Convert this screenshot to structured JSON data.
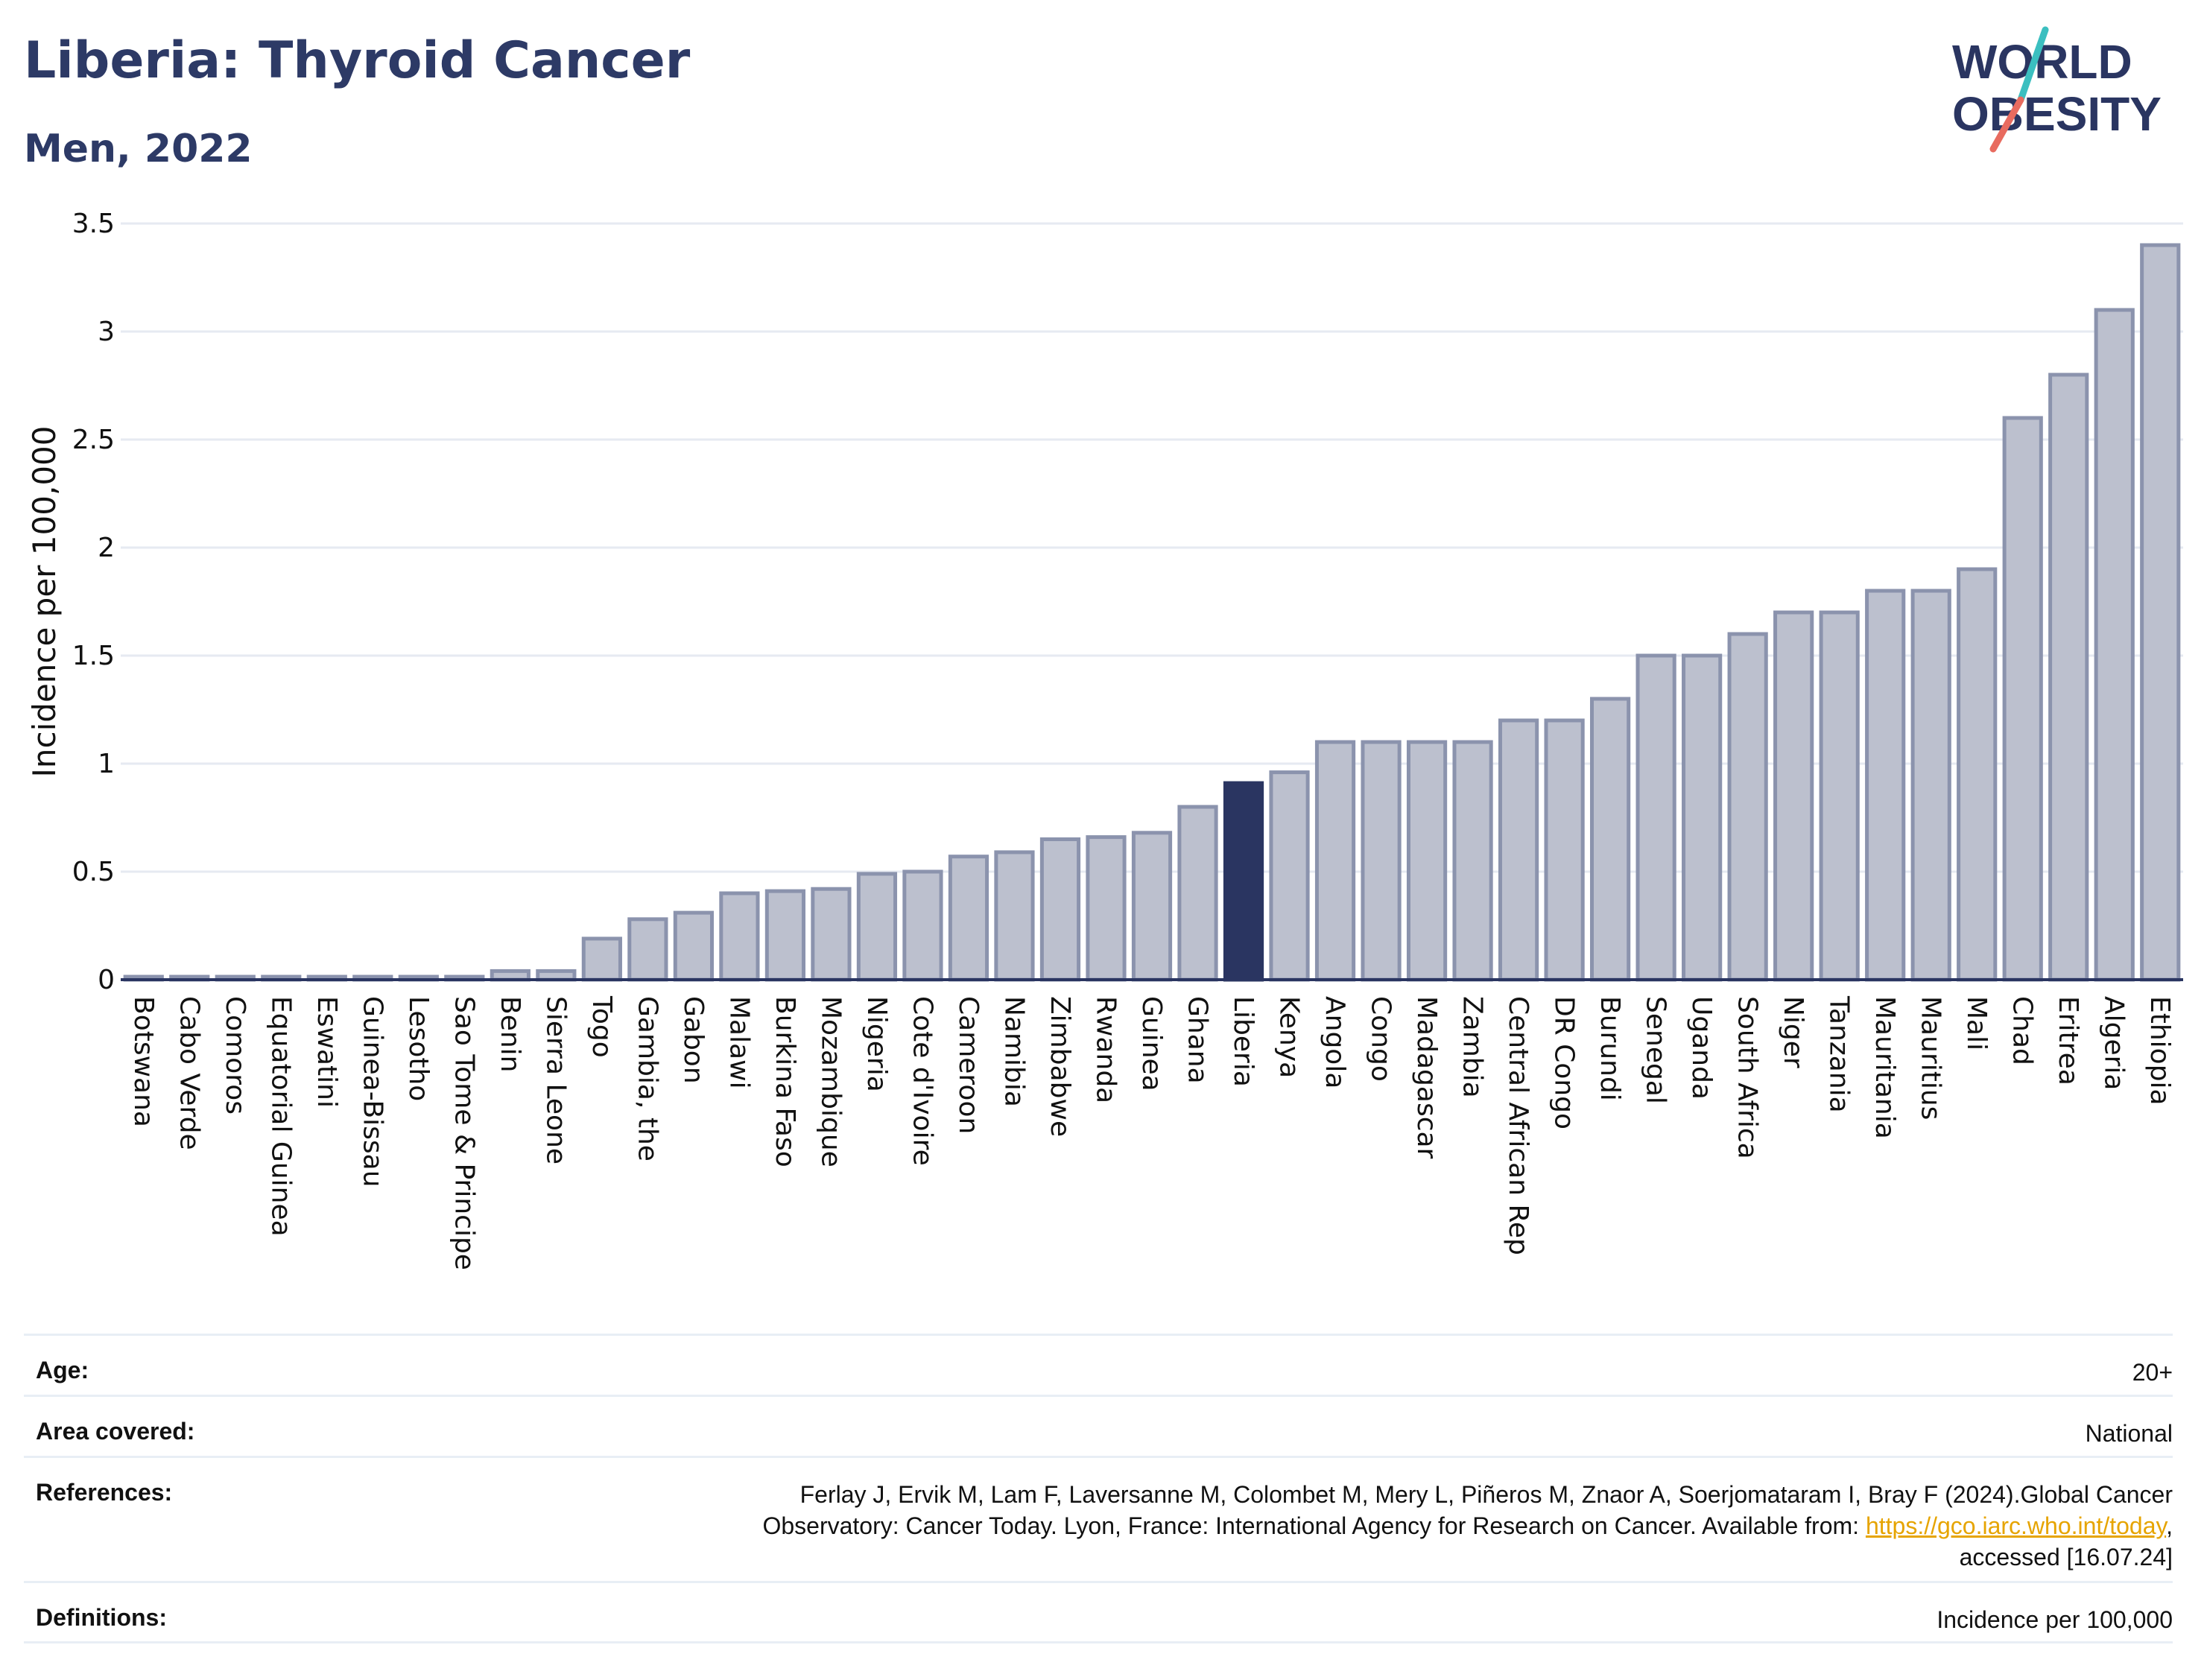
{
  "header": {
    "title": "Liberia: Thyroid Cancer",
    "subtitle": "Men, 2022"
  },
  "logo": {
    "line1": "WORLD",
    "line2": "OBESITY",
    "slash_colors": [
      "#3bbfc0",
      "#e86b5f"
    ]
  },
  "colors": {
    "bar_fill": "#bcc0ce",
    "bar_stroke": "#8b93ad",
    "highlight": "#2a3561",
    "grid": "#e6eaf2",
    "axis": "#2a3561"
  },
  "chart_data": {
    "type": "bar",
    "title": "Liberia: Thyroid Cancer",
    "subtitle": "Men, 2022",
    "ylabel": "Incidence per 100,000",
    "xlabel": "",
    "ylim": [
      0,
      3.5
    ],
    "yticks": [
      "0",
      "0.5",
      "1",
      "1.5",
      "2",
      "2.5",
      "3",
      "3.5"
    ],
    "highlight": "Liberia",
    "grid": true,
    "categories": [
      "Botswana",
      "Cabo Verde",
      "Comoros",
      "Equatorial Guinea",
      "Eswatini",
      "Guinea-Bissau",
      "Lesotho",
      "Sao Tome & Principe",
      "Benin",
      "Sierra Leone",
      "Togo",
      "Gambia, the",
      "Gabon",
      "Malawi",
      "Burkina Faso",
      "Mozambique",
      "Nigeria",
      "Cote d'Ivoire",
      "Cameroon",
      "Namibia",
      "Zimbabwe",
      "Rwanda",
      "Guinea",
      "Ghana",
      "Liberia",
      "Kenya",
      "Angola",
      "Congo",
      "Madagascar",
      "Zambia",
      "Central African Rep",
      "DR Congo",
      "Burundi",
      "Senegal",
      "Uganda",
      "South Africa",
      "Niger",
      "Tanzania",
      "Mauritania",
      "Mauritius",
      "Mali",
      "Chad",
      "Eritrea",
      "Algeria",
      "Ethiopia"
    ],
    "values": [
      0,
      0,
      0,
      0,
      0,
      0,
      0,
      0,
      0.04,
      0.04,
      0.19,
      0.28,
      0.31,
      0.4,
      0.41,
      0.42,
      0.49,
      0.5,
      0.57,
      0.59,
      0.65,
      0.66,
      0.68,
      0.8,
      0.91,
      0.96,
      1.1,
      1.1,
      1.1,
      1.1,
      1.2,
      1.2,
      1.3,
      1.5,
      1.5,
      1.6,
      1.7,
      1.7,
      1.8,
      1.8,
      1.9,
      2.6,
      2.8,
      3.1,
      3.4
    ]
  },
  "meta": {
    "age_label": "Age:",
    "age_value": "20+",
    "area_label": "Area covered:",
    "area_value": "National",
    "references_label": "References:",
    "references_line1": "Ferlay J, Ervik M, Lam F, Laversanne M, Colombet M, Mery L, Piñeros M, Znaor A, Soerjomataram I, Bray F (2024).Global Cancer",
    "references_line2": "Observatory: Cancer Today. Lyon, France: International Agency for Research on Cancer. Available from: ",
    "references_link": "https://gco.iarc.who.int/today",
    "references_line2_end": ",",
    "references_line3": "accessed [16.07.24]",
    "definitions_label": "Definitions:",
    "definitions_value": "Incidence per 100,000"
  }
}
